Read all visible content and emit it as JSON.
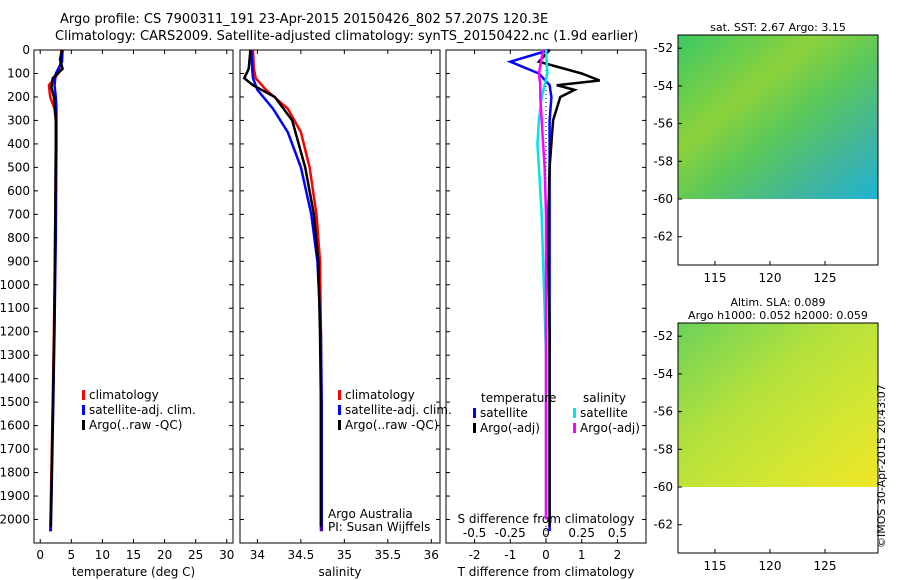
{
  "header": {
    "title_line1": "Argo profile: CS 7900311_191 23-Apr-2015 20150426_802 57.207S 120.3E",
    "title_line2": "Climatology: CARS2009. Satellite-adjusted climatology: synTS_20150422.nc (1.9d earlier)"
  },
  "credit": "©IMOS 30-Apr-2015 20:43:07",
  "colors": {
    "climatology": "#ff0000",
    "satellite": "#0000ff",
    "argo": "#000000",
    "sat_s": "#00e5e5",
    "argo_s": "#ff00ff"
  },
  "chart_data": [
    {
      "type": "line",
      "xlabel": "temperature (deg C)",
      "ylabel": "",
      "xlim": [
        -1,
        31
      ],
      "ylim": [
        2100,
        0
      ],
      "xticks": [
        "0",
        "5",
        "10",
        "15",
        "20",
        "25",
        "30"
      ],
      "yticks": [
        "0",
        "100",
        "200",
        "300",
        "400",
        "500",
        "600",
        "700",
        "800",
        "900",
        "1000",
        "1100",
        "1200",
        "1300",
        "1400",
        "1500",
        "1600",
        "1700",
        "1800",
        "1900",
        "2000"
      ],
      "legend": [
        "climatology",
        "satellite-adj. clim.",
        "Argo(..raw -QC)"
      ],
      "series": [
        {
          "name": "climatology",
          "color": "#ff0000",
          "depth": [
            0,
            50,
            100,
            150,
            200,
            250,
            300,
            400,
            600,
            800,
            1000,
            1200,
            1500,
            1800,
            2050
          ],
          "values": [
            3.4,
            3.3,
            2.9,
            1.4,
            1.6,
            2.3,
            2.5,
            2.5,
            2.45,
            2.4,
            2.3,
            2.2,
            2.0,
            1.8,
            1.6
          ]
        },
        {
          "name": "satellite-adj. clim.",
          "color": "#0000ff",
          "depth": [
            0,
            50,
            100,
            150,
            200,
            250,
            300,
            400,
            600,
            800,
            1000,
            1200,
            1500,
            1800,
            2050
          ],
          "values": [
            3.6,
            3.5,
            2.5,
            2.3,
            2.5,
            2.6,
            2.6,
            2.6,
            2.55,
            2.5,
            2.4,
            2.3,
            2.1,
            1.9,
            1.7
          ]
        },
        {
          "name": "Argo(..raw -QC)",
          "color": "#000000",
          "depth": [
            0,
            40,
            80,
            120,
            160,
            200,
            250,
            300,
            400,
            600,
            800,
            1000,
            1200,
            1500,
            1800,
            2030
          ],
          "values": [
            3.5,
            3.2,
            3.6,
            2.0,
            1.8,
            2.2,
            2.4,
            2.5,
            2.5,
            2.45,
            2.4,
            2.35,
            2.25,
            2.05,
            1.85,
            1.7
          ]
        }
      ]
    },
    {
      "type": "line",
      "xlabel": "salinity",
      "xlim": [
        33.8,
        36.1
      ],
      "ylim": [
        2100,
        0
      ],
      "xticks": [
        "34",
        "34.5",
        "35",
        "35.5",
        "36"
      ],
      "legend": [
        "climatology",
        "satellite-adj. clim.",
        "Argo(..raw -QC)"
      ],
      "annotation": [
        "Argo Australia",
        "PI: Susan Wijffels"
      ],
      "series": [
        {
          "name": "climatology",
          "color": "#ff0000",
          "depth": [
            0,
            80,
            120,
            170,
            250,
            350,
            500,
            700,
            900,
            1200,
            1500,
            1800,
            2050
          ],
          "values": [
            33.95,
            33.96,
            33.98,
            34.1,
            34.35,
            34.5,
            34.6,
            34.68,
            34.72,
            34.73,
            34.73,
            34.73,
            34.73
          ]
        },
        {
          "name": "satellite-adj. clim.",
          "color": "#0000ff",
          "depth": [
            0,
            80,
            120,
            170,
            250,
            350,
            500,
            700,
            900,
            1200,
            1500,
            1800,
            2050
          ],
          "values": [
            33.93,
            33.94,
            33.95,
            34.0,
            34.18,
            34.35,
            34.5,
            34.62,
            34.69,
            34.73,
            34.74,
            34.74,
            34.74
          ]
        },
        {
          "name": "Argo(..raw -QC)",
          "color": "#000000",
          "depth": [
            0,
            80,
            120,
            150,
            200,
            300,
            500,
            700,
            900,
            1200,
            1500,
            1800,
            2030
          ],
          "values": [
            33.92,
            33.9,
            33.85,
            33.95,
            34.2,
            34.4,
            34.55,
            34.65,
            34.7,
            34.72,
            34.73,
            34.73,
            34.73
          ]
        }
      ]
    },
    {
      "type": "line",
      "xlabel": "T difference from climatology",
      "xlabel_top": "S difference from climatology",
      "xlim": [
        -2.8,
        2.8
      ],
      "ylim": [
        2100,
        0
      ],
      "xticks": [
        "-2",
        "-1",
        "0",
        "1",
        "2"
      ],
      "xticks_top": [
        "-0.5",
        "-0.25",
        "0",
        "0.25",
        "0.5"
      ],
      "legend_titles": [
        "temperature",
        "salinity"
      ],
      "legend": [
        "satellite",
        "Argo(-adj)",
        "satellite",
        "Argo(-adj)"
      ],
      "series": [
        {
          "name": "temperature satellite",
          "color": "#0000ff",
          "depth": [
            0,
            50,
            100,
            150,
            200,
            300,
            500,
            800,
            1200,
            1600,
            2050
          ],
          "values": [
            0.1,
            -1.0,
            -0.2,
            0.1,
            0.15,
            0.1,
            0.1,
            0.1,
            0.1,
            0.1,
            0.1
          ]
        },
        {
          "name": "temperature Argo(-adj)",
          "color": "#000000",
          "depth": [
            0,
            50,
            100,
            130,
            150,
            170,
            200,
            300,
            500,
            800,
            1200,
            1600,
            2030
          ],
          "values": [
            0.1,
            -0.2,
            1.0,
            1.5,
            0.3,
            0.8,
            0.4,
            0.2,
            0.1,
            0.05,
            0.1,
            0.1,
            0.1
          ]
        },
        {
          "name": "salinity satellite",
          "color": "#00e5e5",
          "depth": [
            0,
            100,
            200,
            300,
            400,
            500,
            700,
            900,
            1100,
            1300,
            1600,
            2000
          ],
          "values": [
            0.0,
            0.01,
            -0.03,
            -0.05,
            -0.06,
            -0.05,
            -0.03,
            -0.02,
            -0.01,
            0.0,
            0.0,
            0.0
          ]
        },
        {
          "name": "salinity Argo(-adj)",
          "color": "#ff00ff",
          "depth": [
            0,
            100,
            150,
            200,
            300,
            400,
            500,
            700,
            900,
            1200,
            1600,
            2000
          ],
          "values": [
            -0.02,
            -0.05,
            -0.04,
            -0.04,
            -0.03,
            -0.02,
            -0.01,
            0.0,
            0.0,
            0.0,
            0.0,
            0.0
          ]
        }
      ]
    },
    {
      "type": "heatmap",
      "title": "sat. SST: 2.67 Argo: 3.15",
      "xticks": [
        "115",
        "120",
        "125"
      ],
      "yticks": [
        "-52",
        "-54",
        "-56",
        "-58",
        "-60",
        "-62"
      ],
      "ylim": [
        -63.5,
        -51.3
      ],
      "data_bottom": -60
    },
    {
      "type": "heatmap",
      "title_line1": "Altim. SLA: 0.089",
      "title_line2": "Argo h1000: 0.052 h2000: 0.059",
      "xticks": [
        "115",
        "120",
        "125"
      ],
      "yticks": [
        "-52",
        "-54",
        "-56",
        "-58",
        "-60",
        "-62"
      ],
      "ylim": [
        -63.5,
        -51.3
      ],
      "data_bottom": -60
    }
  ]
}
